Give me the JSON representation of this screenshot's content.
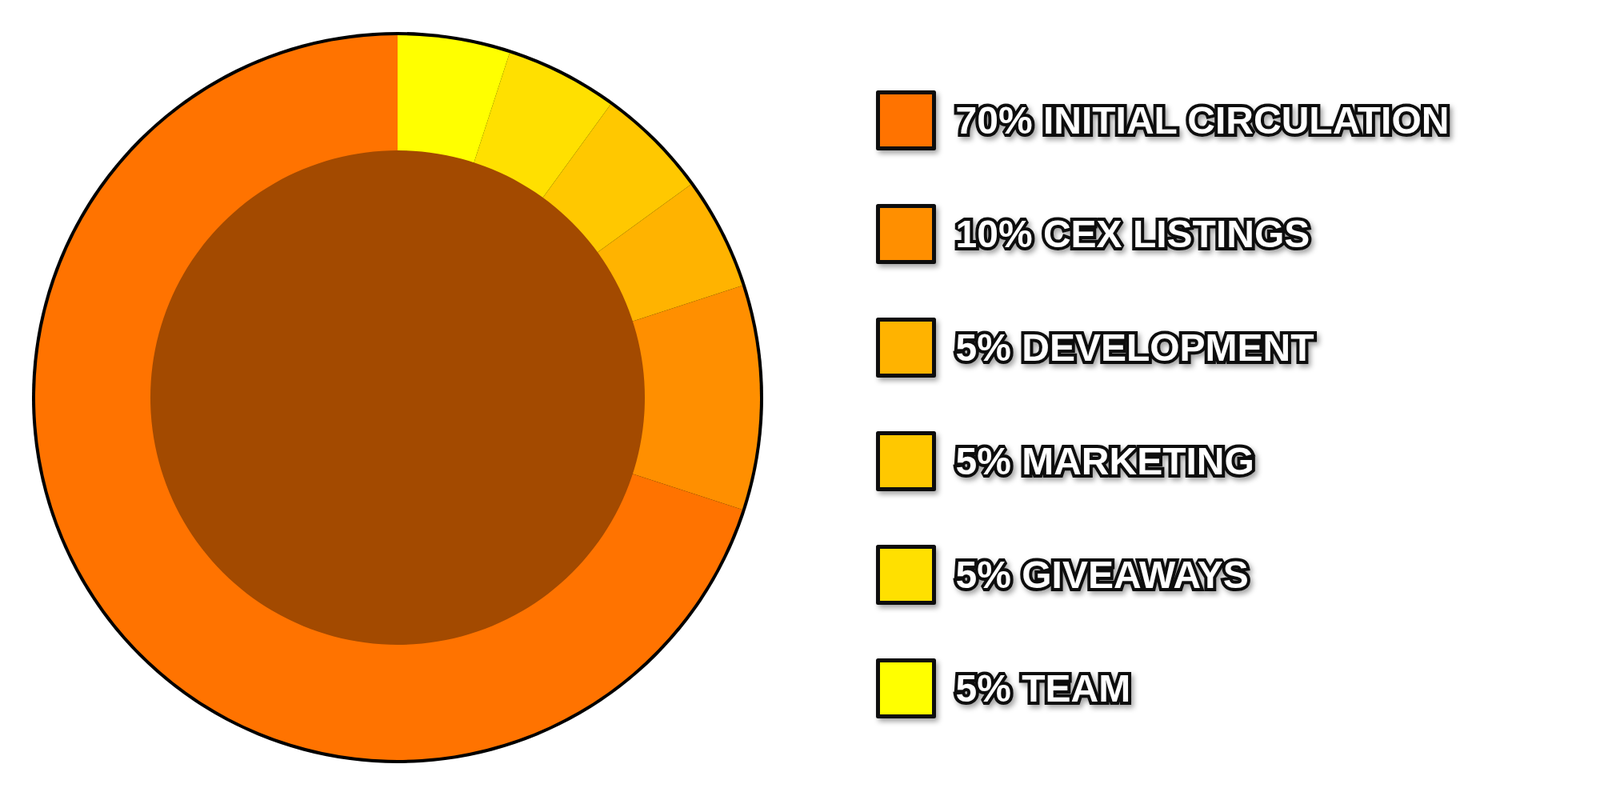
{
  "chart_data": {
    "type": "pie",
    "categories": [
      "70% INITIAL CIRCULATION",
      "10% CEX LISTINGS",
      "5% DEVELOPMENT",
      "5% MARKETING",
      "5% GIVEAWAYS",
      "5% TEAM"
    ],
    "values": [
      70,
      10,
      5,
      5,
      5,
      5
    ],
    "colors": [
      "#ff7300",
      "#ff8f00",
      "#ffb300",
      "#ffc800",
      "#ffe000",
      "#ffff00"
    ],
    "legend": "right",
    "data_labels": false
  }
}
